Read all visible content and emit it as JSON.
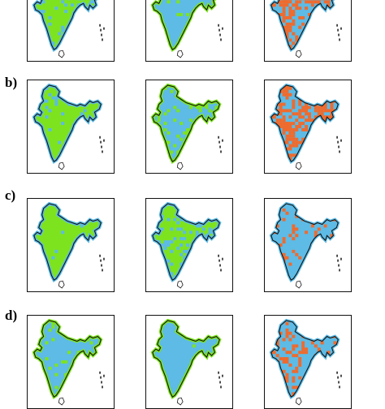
{
  "figure": {
    "rows": [
      {
        "label": "",
        "maps": [
          {
            "cover": "green",
            "speckle": "blue",
            "amount": 0.1
          },
          {
            "cover": "blue",
            "speckle": "green",
            "amount": 0.03
          },
          {
            "cover": "blue",
            "speckle": "orange",
            "amount": 0.5
          }
        ]
      },
      {
        "label": "b)",
        "maps": [
          {
            "cover": "green",
            "speckle": "blue",
            "amount": 0.12
          },
          {
            "cover": "blue",
            "speckle": "green",
            "amount": 0.18
          },
          {
            "cover": "blue",
            "speckle": "orange",
            "amount": 0.55
          }
        ]
      },
      {
        "label": "c)",
        "maps": [
          {
            "cover": "green",
            "speckle": "blue",
            "amount": 0.02
          },
          {
            "cover": "green",
            "speckle": "blue",
            "amount": 0.25
          },
          {
            "cover": "blue",
            "speckle": "orange",
            "amount": 0.12
          }
        ]
      },
      {
        "label": "d)",
        "maps": [
          {
            "cover": "blue",
            "speckle": "green",
            "amount": 0.08
          },
          {
            "cover": "blue",
            "speckle": "green",
            "amount": 0.01
          },
          {
            "cover": "blue",
            "speckle": "orange",
            "amount": 0.25
          }
        ]
      }
    ],
    "colors": {
      "green": "#7ee31f",
      "blue": "#5dbbe6",
      "orange": "#f06a2c",
      "outline": "#111111",
      "frame": "#111111"
    }
  }
}
